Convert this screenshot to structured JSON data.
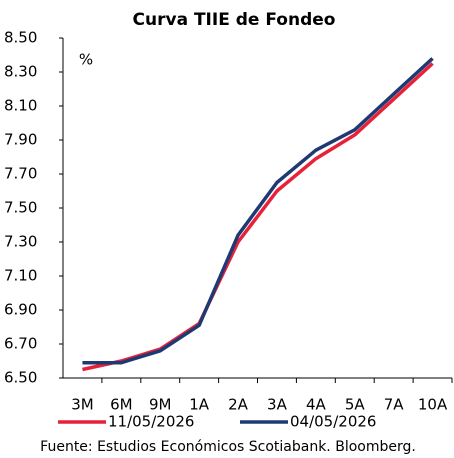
{
  "chart_data": {
    "type": "line",
    "title": "Curva TIIE de Fondeo",
    "y_unit": "%",
    "categories": [
      "3M",
      "6M",
      "9M",
      "1A",
      "2A",
      "3A",
      "4A",
      "5A",
      "7A",
      "10A"
    ],
    "series": [
      {
        "name": "11/05/2026",
        "color": "#e8213a",
        "values": [
          6.55,
          6.6,
          6.67,
          6.82,
          7.3,
          7.6,
          7.79,
          7.93,
          8.14,
          8.35
        ]
      },
      {
        "name": "04/05/2026",
        "color": "#1f3a73",
        "values": [
          6.59,
          6.59,
          6.66,
          6.81,
          7.34,
          7.65,
          7.84,
          7.96,
          8.17,
          8.38
        ]
      }
    ],
    "ylim": [
      6.5,
      8.5
    ],
    "yticks": [
      {
        "value": 6.5,
        "label": "6.50"
      },
      {
        "value": 6.7,
        "label": "6.70"
      },
      {
        "value": 6.9,
        "label": "6.90"
      },
      {
        "value": 7.1,
        "label": "7.10"
      },
      {
        "value": 7.3,
        "label": "7.30"
      },
      {
        "value": 7.5,
        "label": "7.50"
      },
      {
        "value": 7.7,
        "label": "7.70"
      },
      {
        "value": 7.9,
        "label": "7.90"
      },
      {
        "value": 8.1,
        "label": "8.10"
      },
      {
        "value": 8.3,
        "label": "8.30"
      },
      {
        "value": 8.5,
        "label": "8.50"
      }
    ],
    "legend": "bottom",
    "source": "Fuente: Estudios Económicos Scotiabank. Bloomberg."
  }
}
